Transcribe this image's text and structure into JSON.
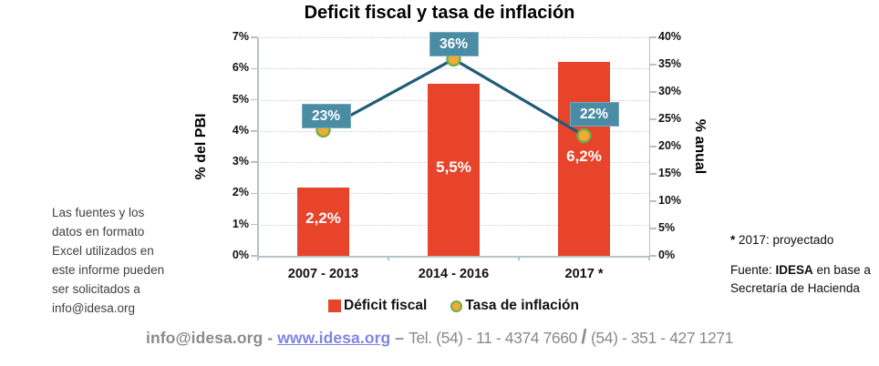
{
  "chart_data": {
    "type": "bar",
    "title": "Deficit fiscal y tasa de inflación",
    "categories": [
      "2007 - 2013",
      "2014 - 2016",
      "2017 *"
    ],
    "series": [
      {
        "name": "Déficit fiscal",
        "type": "bar",
        "axis": "left",
        "values": [
          2.2,
          5.5,
          6.2
        ],
        "labels": [
          "2,2%",
          "5,5%",
          "6,2%"
        ],
        "color": "#E8432B"
      },
      {
        "name": "Tasa de inflación",
        "type": "line",
        "axis": "right",
        "values": [
          23,
          36,
          22
        ],
        "labels": [
          "23%",
          "36%",
          "22%"
        ],
        "line_color": "#205C78",
        "marker_fill": "#F2AC33",
        "marker_ring": "#6FAE47",
        "label_box_color": "#4A8CA4"
      }
    ],
    "left_axis": {
      "label": "% del PBI",
      "min": 0,
      "max": 7,
      "ticks": [
        "0%",
        "1%",
        "2%",
        "3%",
        "4%",
        "5%",
        "6%",
        "7%"
      ]
    },
    "right_axis": {
      "label": "% anual",
      "min": 0,
      "max": 40,
      "ticks": [
        "0%",
        "5%",
        "10%",
        "15%",
        "20%",
        "25%",
        "30%",
        "35%",
        "40%"
      ]
    },
    "grid": true,
    "legend_position": "bottom"
  },
  "notes_left": {
    "lines": [
      "Las fuentes y los",
      "datos en formato",
      "Excel utilizados en",
      "este informe pueden",
      "ser solicitados a",
      "info@idesa.org"
    ]
  },
  "notes_right": {
    "projection_note": "* 2017: proyectado",
    "source_prefix": "Fuente: ",
    "source_name": "IDESA",
    "source_suffix": " en base a Secretaría de Hacienda"
  },
  "footer": {
    "email": "info@idesa.org",
    "separator": " - ",
    "website": "www.idesa.org",
    "dash": " – ",
    "tel": "Tel. (54) - 11 - 4374 7660 ",
    "slash": "/",
    "phone2": " (54) - 351 - 427 1271"
  },
  "colors": {
    "bar_red": "#E8432B",
    "line_teal": "#205C78",
    "marker_fill": "#F2AC33",
    "marker_ring": "#6FAE47",
    "label_box": "#4A8CA4",
    "link_blue": "#8184E2",
    "footer_gray": "#8A8A8A"
  }
}
